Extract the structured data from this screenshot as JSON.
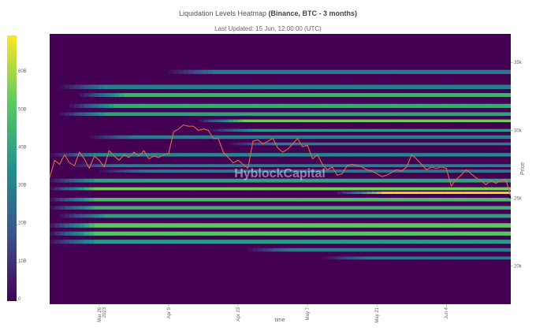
{
  "header": {
    "title_prefix": "Liquidation Levels Heatmap ",
    "title_bold": "(Binance, BTC - 3 months)",
    "subtitle": "Last Updated: 15 Jun, 12:00:00 (UTC)"
  },
  "watermark": "HyblockCapital",
  "chart_data": {
    "type": "heatmap",
    "title": "Liquidation Levels Heatmap (Binance, BTC - 3 months)",
    "subtitle": "Last Updated: 15 Jun, 12:00:00 (UTC)",
    "xlabel": "time",
    "ylabel": "Price",
    "colorscale": [
      "#440154",
      "#3b528b",
      "#21918c",
      "#5ec962",
      "#fde725"
    ],
    "colorbar": {
      "min": 0,
      "max": 70,
      "ticks": [
        {
          "value": 0,
          "label": "0"
        },
        {
          "value": 10,
          "label": "10B"
        },
        {
          "value": 20,
          "label": "20B"
        },
        {
          "value": 30,
          "label": "30B"
        },
        {
          "value": 40,
          "label": "40B"
        },
        {
          "value": 50,
          "label": "50B"
        },
        {
          "value": 60,
          "label": "60B"
        }
      ]
    },
    "x_range": [
      0,
      93
    ],
    "x_ticks": [
      {
        "day": 10,
        "label": "Mar 26",
        "sub": "2023"
      },
      {
        "day": 24,
        "label": "Apr 9",
        "sub": ""
      },
      {
        "day": 38,
        "label": "Apr 23",
        "sub": ""
      },
      {
        "day": 52,
        "label": "May 7",
        "sub": ""
      },
      {
        "day": 66,
        "label": "May 21",
        "sub": ""
      },
      {
        "day": 80,
        "label": "Jun 4",
        "sub": ""
      }
    ],
    "y_range": [
      17200,
      37100
    ],
    "y_ticks": [
      {
        "value": 20000,
        "label": "20k"
      },
      {
        "value": 25000,
        "label": "25k"
      },
      {
        "value": 30000,
        "label": "30k"
      },
      {
        "value": 35000,
        "label": "35k"
      }
    ],
    "bands": [
      {
        "price": 34300,
        "start_day": 24,
        "peak": 28,
        "width": 300
      },
      {
        "price": 33200,
        "start_day": 2,
        "peak": 30,
        "width": 320
      },
      {
        "price": 32600,
        "start_day": 6,
        "peak": 45,
        "width": 280
      },
      {
        "price": 31800,
        "start_day": 4,
        "peak": 42,
        "width": 300
      },
      {
        "price": 31200,
        "start_day": 2,
        "peak": 40,
        "width": 260
      },
      {
        "price": 30700,
        "start_day": 30,
        "peak": 55,
        "width": 200
      },
      {
        "price": 30000,
        "start_day": 32,
        "peak": 38,
        "width": 200
      },
      {
        "price": 29500,
        "start_day": 8,
        "peak": 30,
        "width": 260
      },
      {
        "price": 29000,
        "start_day": 36,
        "peak": 30,
        "width": 200
      },
      {
        "price": 28200,
        "start_day": 0,
        "peak": 32,
        "width": 260
      },
      {
        "price": 27400,
        "start_day": 4,
        "peak": 30,
        "width": 220
      },
      {
        "price": 27000,
        "start_day": 10,
        "peak": 28,
        "width": 220
      },
      {
        "price": 26300,
        "start_day": 0,
        "peak": 40,
        "width": 280
      },
      {
        "price": 25700,
        "start_day": 0,
        "peak": 55,
        "width": 220
      },
      {
        "price": 25400,
        "start_day": 58,
        "peak": 68,
        "width": 160
      },
      {
        "price": 24900,
        "start_day": 0,
        "peak": 48,
        "width": 260
      },
      {
        "price": 24300,
        "start_day": 0,
        "peak": 44,
        "width": 260
      },
      {
        "price": 23700,
        "start_day": 2,
        "peak": 40,
        "width": 280
      },
      {
        "price": 23000,
        "start_day": 0,
        "peak": 52,
        "width": 320
      },
      {
        "price": 22400,
        "start_day": 0,
        "peak": 50,
        "width": 300
      },
      {
        "price": 21800,
        "start_day": 0,
        "peak": 38,
        "width": 300
      },
      {
        "price": 21200,
        "start_day": 40,
        "peak": 30,
        "width": 260
      },
      {
        "price": 20600,
        "start_day": 55,
        "peak": 28,
        "width": 220
      }
    ],
    "price_series": {
      "name": "BTC",
      "x": [
        0,
        1,
        2,
        3,
        4,
        5,
        6,
        7,
        8,
        9,
        10,
        11,
        12,
        13,
        14,
        15,
        16,
        17,
        18,
        19,
        20,
        21,
        22,
        23,
        24,
        25,
        26,
        27,
        28,
        29,
        30,
        31,
        32,
        33,
        34,
        35,
        36,
        37,
        38,
        39,
        40,
        41,
        42,
        43,
        44,
        45,
        46,
        47,
        48,
        49,
        50,
        51,
        52,
        53,
        54,
        55,
        56,
        57,
        58,
        59,
        60,
        61,
        62,
        63,
        64,
        65,
        66,
        67,
        68,
        69,
        70,
        71,
        72,
        73,
        74,
        75,
        76,
        77,
        78,
        79,
        80,
        81,
        82,
        83,
        84,
        85,
        86,
        87,
        88,
        89,
        90,
        91,
        92,
        93
      ],
      "y": [
        26500,
        27800,
        27500,
        28200,
        27600,
        27400,
        28400,
        27900,
        27200,
        28100,
        27800,
        27300,
        28500,
        28100,
        27800,
        28200,
        28000,
        28400,
        28100,
        28500,
        27900,
        28100,
        28000,
        28200,
        28300,
        29900,
        30100,
        30400,
        30300,
        30300,
        30000,
        30100,
        30000,
        29400,
        29400,
        28400,
        28000,
        27600,
        27800,
        27500,
        27200,
        29200,
        29300,
        29000,
        29200,
        29400,
        28700,
        28400,
        28600,
        29000,
        29400,
        28800,
        28900,
        27900,
        28200,
        27500,
        27100,
        27300,
        26700,
        26800,
        27400,
        27500,
        27400,
        27300,
        27100,
        27000,
        26800,
        26600,
        26700,
        26900,
        27100,
        27000,
        27300,
        28200,
        27900,
        27500,
        27100,
        27300,
        27200,
        27300,
        27200,
        25900,
        26400,
        26700,
        27100,
        26800,
        26500,
        26300,
        26000,
        26300,
        26100,
        26300,
        26400,
        25100
      ]
    }
  }
}
